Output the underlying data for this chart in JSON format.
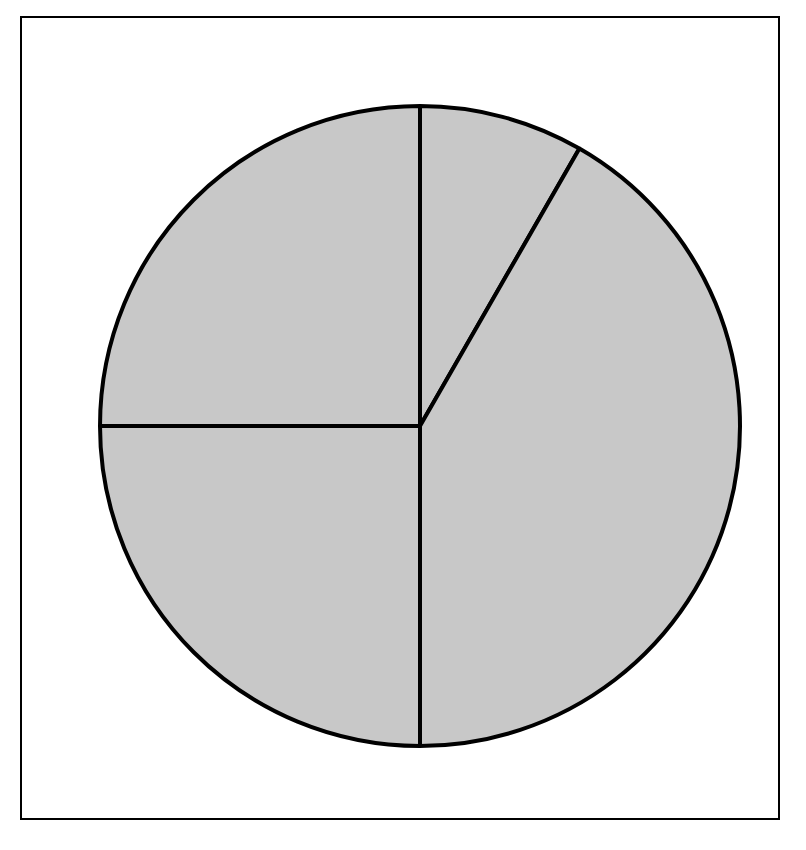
{
  "chart_data": {
    "type": "pie",
    "categories": [
      null,
      null,
      null,
      null
    ],
    "values": [
      8.3,
      41.7,
      25,
      25
    ],
    "colors": [
      "#c8c8c8",
      "#c8c8c8",
      "#c8c8c8",
      "#c8c8c8"
    ],
    "legend": false
  }
}
